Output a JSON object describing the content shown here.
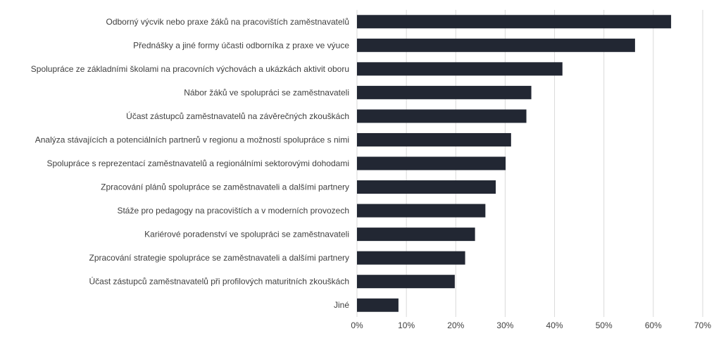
{
  "chart_data": {
    "type": "bar",
    "orientation": "horizontal",
    "categories": [
      "Odborný výcvik nebo praxe žáků na pracovištích zaměstnavatelů",
      "Přednášky a jiné formy účasti odborníka z praxe ve výuce",
      "Spolupráce ze základními školami na pracovních výchovách a ukázkách aktivit oboru",
      "Nábor žáků ve spolupráci se zaměstnavateli",
      "Účast zástupců zaměstnavatelů na závěrečných zkouškách",
      "Analýza stávajících a potenciálních partnerů v regionu a možností spolupráce s nimi",
      "Spolupráce s reprezentací zaměstnavatelů a regionálními sektorovými dohodami",
      "Zpracování plánů spolupráce se zaměstnavateli a dalšími partnery",
      "Stáže pro pedagogy na pracovištích a v moderních provozech",
      "Kariérové poradenství ve spolupráci se zaměstnavateli",
      "Zpracování strategie spolupráce se zaměstnavateli a dalšími partnery",
      "Účast zástupců zaměstnavatelů při profilových maturitních zkouškách",
      "Jiné"
    ],
    "values": [
      63.6,
      56.3,
      41.6,
      35.3,
      34.3,
      31.2,
      30.1,
      28.1,
      26.0,
      23.9,
      21.9,
      19.8,
      8.4
    ],
    "xlim": [
      0,
      70
    ],
    "xticks": [
      0,
      10,
      20,
      30,
      40,
      50,
      60,
      70
    ],
    "tick_labels": [
      "0%",
      "10%",
      "20%",
      "30%",
      "40%",
      "50%",
      "60%",
      "70%"
    ],
    "grid": true,
    "legend": false,
    "bar_color": "#222733",
    "grid_color": "#d9d9d9",
    "text_color": "#404040"
  }
}
